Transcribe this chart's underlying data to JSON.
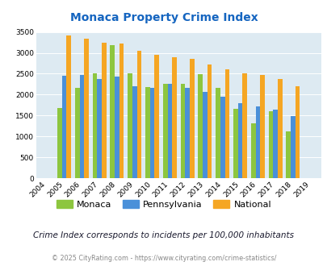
{
  "title": "Monaca Property Crime Index",
  "years": [
    2004,
    2005,
    2006,
    2007,
    2008,
    2009,
    2010,
    2011,
    2012,
    2013,
    2014,
    2015,
    2016,
    2017,
    2018,
    2019
  ],
  "monaca": [
    0,
    1680,
    2170,
    2510,
    3190,
    2500,
    2190,
    2250,
    2250,
    2480,
    2170,
    1660,
    1310,
    1610,
    1120,
    0
  ],
  "pennsylvania": [
    0,
    2460,
    2470,
    2380,
    2430,
    2200,
    2160,
    2250,
    2160,
    2060,
    1940,
    1800,
    1720,
    1640,
    1490,
    0
  ],
  "national": [
    0,
    3420,
    3330,
    3250,
    3220,
    3040,
    2960,
    2890,
    2860,
    2730,
    2600,
    2500,
    2470,
    2380,
    2200,
    0
  ],
  "monaca_color": "#8dc63f",
  "pennsylvania_color": "#4a90d9",
  "national_color": "#f5a623",
  "bg_color": "#ddeaf2",
  "title_color": "#1565c0",
  "ylim": [
    0,
    3500
  ],
  "yticks": [
    0,
    500,
    1000,
    1500,
    2000,
    2500,
    3000,
    3500
  ],
  "subtitle": "Crime Index corresponds to incidents per 100,000 inhabitants",
  "footer": "© 2025 CityRating.com - https://www.cityrating.com/crime-statistics/",
  "legend_labels": [
    "Monaca",
    "Pennsylvania",
    "National"
  ]
}
